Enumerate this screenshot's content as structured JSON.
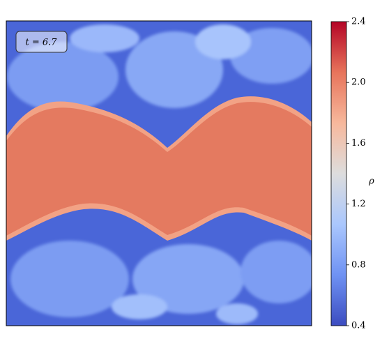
{
  "chart_data": {
    "type": "image",
    "annotation": "t = 6.7",
    "colorbar": {
      "label": "ρ",
      "clim": [
        0.4,
        2.4
      ],
      "ticks": [
        0.4,
        0.8,
        1.2,
        1.6,
        {
          "value": 2,
          "label": "2.0"
        },
        2.4
      ],
      "colors": [
        "#3b4cc0",
        "#6f92f3",
        "#aac7fd",
        "#dddddd",
        "#f7b89c",
        "#e7745b",
        "#b40426"
      ]
    }
  }
}
